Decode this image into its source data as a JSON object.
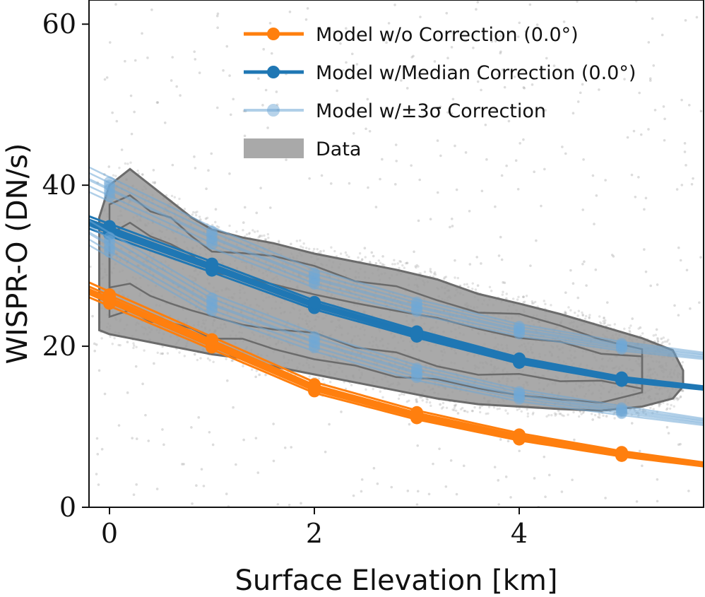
{
  "chart_data": {
    "type": "line",
    "xlabel": "Surface Elevation [km]",
    "ylabel": "WISPR-O (DN/s)",
    "xlim": [
      -0.2,
      5.8
    ],
    "ylim": [
      0,
      63
    ],
    "x_ticks": [
      0,
      2,
      4
    ],
    "y_ticks": [
      0,
      20,
      40,
      60
    ],
    "x_tick_labels": [
      "0",
      "2",
      "4"
    ],
    "y_tick_labels": [
      "0",
      "20",
      "40",
      "60"
    ],
    "grid": false,
    "legend_position": "top-right",
    "colors": {
      "orange": "#ff7f0e",
      "blue": "#1f77b4",
      "light_blue": "#6fa8d6",
      "data_gray": "#9a9a9a",
      "contour": "#6b6b6b"
    },
    "series": [
      {
        "name": "Model w/o Correction (0.0°)",
        "legend_label": "Model w/o Correction (0.0°)",
        "style": "orange",
        "x": [
          0,
          1,
          2,
          3,
          4,
          5,
          5.8
        ],
        "y": [
          25.8,
          20.3,
          14.8,
          11.4,
          8.7,
          6.6,
          5.3
        ],
        "x_extent": [
          -0.2,
          5.8
        ],
        "offsets": [
          -0.8,
          -0.4,
          0,
          0.5,
          1.0
        ]
      },
      {
        "name": "Model w/Median Correction (0.0°)",
        "legend_label": "Model w/Median Correction (0.0°)",
        "style": "blue",
        "x": [
          0,
          1,
          2,
          3,
          4,
          5,
          5.8
        ],
        "y": [
          34.4,
          29.8,
          25.1,
          21.5,
          18.2,
          15.9,
          14.8
        ],
        "x_extent": [
          -0.2,
          5.8
        ],
        "offsets": [
          -0.7,
          -0.3,
          0,
          0.4,
          0.8
        ]
      },
      {
        "name": "Model w/±3σ Correction (upper)",
        "legend_label": "Model w/±3σ Correction",
        "style": "light_blue",
        "x": [
          0,
          1,
          2,
          3,
          4,
          5,
          5.8
        ],
        "y": [
          39.5,
          33.5,
          28.4,
          24.9,
          22.0,
          20.0,
          18.8
        ],
        "x_extent": [
          -0.2,
          5.8
        ],
        "offsets": [
          -1.5,
          -0.8,
          0,
          0.8,
          1.5
        ]
      },
      {
        "name": "Model w/±3σ Correction (lower)",
        "legend_label": "",
        "style": "light_blue",
        "x": [
          0,
          1,
          2,
          3,
          4,
          5,
          5.8
        ],
        "y": [
          32.6,
          25.2,
          20.5,
          16.7,
          13.9,
          12.0,
          10.6
        ],
        "x_extent": [
          -0.2,
          5.8
        ],
        "offsets": [
          -1.5,
          -0.8,
          0,
          0.8,
          1.5
        ]
      }
    ],
    "data_envelope": {
      "name": "Data",
      "legend_label": "Data",
      "x": [
        -0.1,
        0.0,
        0.2,
        0.4,
        0.6,
        0.8,
        1.0,
        1.3,
        1.6,
        2.0,
        2.4,
        2.8,
        3.2,
        3.6,
        4.0,
        4.4,
        4.8,
        5.2,
        5.5,
        5.6
      ],
      "upper": [
        36,
        40,
        42,
        40,
        38,
        36,
        34.5,
        33.5,
        32.8,
        31.5,
        30.5,
        29.5,
        28.3,
        26.5,
        25.3,
        24,
        22.5,
        21,
        19.5,
        17
      ],
      "lower": [
        22,
        21.5,
        21,
        20.5,
        20,
        19.5,
        19,
        18.5,
        17.5,
        16.5,
        15.5,
        14.5,
        13.5,
        12.8,
        12.5,
        12.2,
        12,
        12.5,
        13.5,
        15
      ]
    }
  }
}
